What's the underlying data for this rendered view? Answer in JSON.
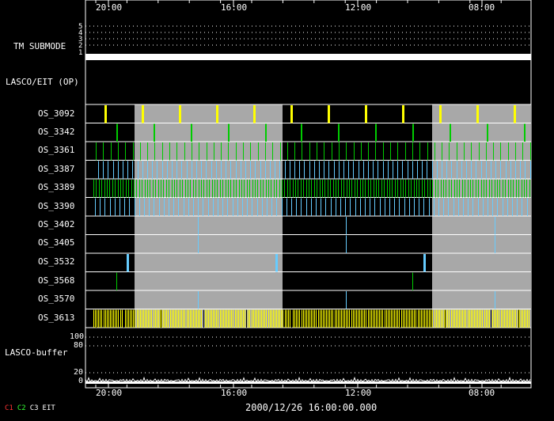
{
  "header": {
    "time_ticks": [
      "20:00",
      "16:00",
      "12:00",
      "08:00"
    ]
  },
  "footer": {
    "time_ticks": [
      "20:00",
      "16:00",
      "12:00",
      "08:00"
    ],
    "timestamp": "2000/12/26 16:00:00.000"
  },
  "tm_submode": {
    "label": "TM SUBMODE",
    "levels": [
      "5",
      "4",
      "3",
      "2",
      "1"
    ]
  },
  "lasco_eit": {
    "label": "LASCO/EIT (OP)"
  },
  "rows": [
    {
      "label": "OS_3092",
      "color": "#ffff00"
    },
    {
      "label": "OS_3342",
      "color": "#00cc00"
    },
    {
      "label": "OS_3361",
      "color": "#00cc00"
    },
    {
      "label": "OS_3387",
      "color": "#66ccff"
    },
    {
      "label": "OS_3389",
      "color": "#00cc00"
    },
    {
      "label": "OS_3390",
      "color": "#66ccff"
    },
    {
      "label": "OS_3402",
      "color": "#66ccff"
    },
    {
      "label": "OS_3405",
      "color": "#66ccff"
    },
    {
      "label": "OS_3532",
      "color": "#66ccff"
    },
    {
      "label": "OS_3568",
      "color": "#00cc00"
    },
    {
      "label": "OS_3570",
      "color": "#66ccff"
    },
    {
      "label": "OS_3613",
      "color": "#ffff00"
    }
  ],
  "buffer": {
    "label": "LASCO-buffer",
    "ticks": [
      "100",
      "80",
      "20",
      "0"
    ]
  },
  "legend": [
    {
      "label": "C1",
      "color": "#ff3333"
    },
    {
      "label": "C2",
      "color": "#33ff33"
    },
    {
      "label": "C3",
      "color": "#ffffff"
    },
    {
      "label": "EIT",
      "color": "#ffffff"
    }
  ],
  "colors": {
    "gray_band": "#a8a8a8",
    "frame": "#ffffff",
    "background": "#000000"
  }
}
